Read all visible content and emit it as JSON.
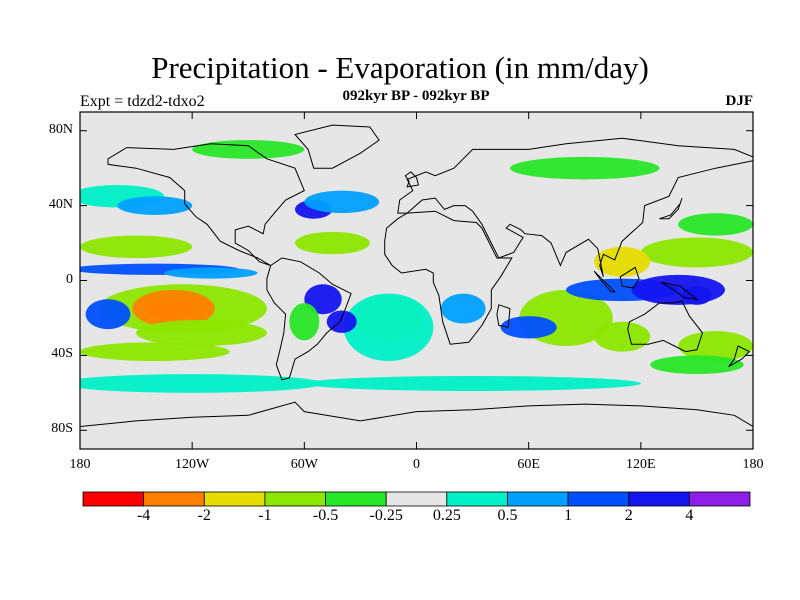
{
  "title": "Precipitation - Evaporation (in mm/day)",
  "subtitle": "092kyr BP - 092kyr BP",
  "experiment": "Expt = tdzd2-tdxo2",
  "season": "DJF",
  "colors": {
    "ocean_neutral": "#e6e6e6",
    "coastline": "#000000"
  },
  "chart_data": {
    "type": "heatmap",
    "title": "Precipitation - Evaporation (in mm/day)",
    "x_axis": {
      "range": [
        -180,
        180
      ],
      "tick_values": [
        -180,
        -120,
        -60,
        0,
        60,
        120,
        180
      ],
      "tick_labels": [
        "180",
        "120W",
        "60W",
        "0",
        "60E",
        "120E",
        "180"
      ]
    },
    "y_axis": {
      "range": [
        -90,
        90
      ],
      "tick_values": [
        80,
        40,
        0,
        -40,
        -80
      ],
      "tick_labels": [
        "80N",
        "40N",
        "0",
        "40S",
        "80S"
      ]
    },
    "colorbar": {
      "labels": [
        "-4",
        "-2",
        "-1",
        "-0.5",
        "-0.25",
        "0.25",
        "0.5",
        "1",
        "2",
        "4"
      ],
      "boundaries": [
        -4,
        -2,
        -1,
        -0.5,
        -0.25,
        0.25,
        0.5,
        1,
        2,
        4
      ],
      "colors": [
        "#ff0000",
        "#ff8000",
        "#e6dc00",
        "#8ce600",
        "#28e628",
        "#e6e6e6",
        "#00f0c8",
        "#00a0ff",
        "#0050ff",
        "#1414f0",
        "#8c1ee6"
      ]
    },
    "regions": [
      {
        "name": "trop-dry-se-pacific",
        "lon": -125,
        "lat": -15,
        "rlon": 45,
        "rlat": 13,
        "v": -0.7
      },
      {
        "name": "pacific-dry-core",
        "lon": -132,
        "lat": -15,
        "rlon": 12,
        "rlat": 6,
        "v": -3.5
      },
      {
        "name": "pacific-dry-ring",
        "lon": -130,
        "lat": -15,
        "rlon": 22,
        "rlat": 10,
        "v": -2.2
      },
      {
        "name": "se-pacific-arc",
        "lon": -115,
        "lat": -28,
        "rlon": 35,
        "rlat": 7,
        "v": -0.7
      },
      {
        "name": "south-pacific-band",
        "lon": -140,
        "lat": -38,
        "rlon": 40,
        "rlat": 5,
        "v": -0.8
      },
      {
        "name": "north-pacific-dry",
        "lon": -150,
        "lat": 18,
        "rlon": 30,
        "rlat": 6,
        "v": -0.8
      },
      {
        "name": "itcz-east-pacific",
        "lon": -140,
        "lat": 6,
        "rlon": 45,
        "rlat": 3,
        "v": 1.5
      },
      {
        "name": "itcz-east-pacific-2",
        "lon": -110,
        "lat": 4,
        "rlon": 25,
        "rlat": 3,
        "v": 0.8
      },
      {
        "name": "sw-pacific-blue",
        "lon": -165,
        "lat": -18,
        "rlon": 12,
        "rlat": 8,
        "v": 1.5
      },
      {
        "name": "north-pacific-storm",
        "lon": -160,
        "lat": 45,
        "rlon": 25,
        "rlat": 6,
        "v": 0.4
      },
      {
        "name": "n-pacific-wet",
        "lon": -140,
        "lat": 40,
        "rlon": 20,
        "rlat": 5,
        "v": 0.8
      },
      {
        "name": "south-ocean-cyan",
        "lon": -120,
        "lat": -55,
        "rlon": 70,
        "rlat": 5,
        "v": 0.4
      },
      {
        "name": "south-ocean-cyan-2",
        "lon": 30,
        "lat": -55,
        "rlon": 90,
        "rlat": 4,
        "v": 0.4
      },
      {
        "name": "north-atlantic-blue",
        "lon": -55,
        "lat": 38,
        "rlon": 10,
        "rlat": 5,
        "v": 2.0
      },
      {
        "name": "north-atlantic-wet",
        "lon": -40,
        "lat": 42,
        "rlon": 20,
        "rlat": 6,
        "v": 0.5
      },
      {
        "name": "atlantic-dry",
        "lon": -45,
        "lat": 20,
        "rlon": 20,
        "rlat": 6,
        "v": -0.6
      },
      {
        "name": "south-atlantic-dry",
        "lon": -15,
        "lat": -20,
        "rlon": 18,
        "rlat": 12,
        "v": -0.6
      },
      {
        "name": "south-atlantic-ring",
        "lon": -15,
        "lat": -25,
        "rlon": 24,
        "rlat": 18,
        "v": 0.4
      },
      {
        "name": "amazon-wet",
        "lon": -50,
        "lat": -10,
        "rlon": 10,
        "rlat": 8,
        "v": 2.0
      },
      {
        "name": "brazil-east",
        "lon": -40,
        "lat": -22,
        "rlon": 8,
        "rlat": 6,
        "v": 2.2
      },
      {
        "name": "sa-dry",
        "lon": -60,
        "lat": -22,
        "rlon": 8,
        "rlat": 10,
        "v": -0.4
      },
      {
        "name": "africa-wet",
        "lon": 25,
        "lat": -15,
        "rlon": 12,
        "rlat": 8,
        "v": 0.6
      },
      {
        "name": "indian-ocean-dry",
        "lon": 80,
        "lat": -20,
        "rlon": 25,
        "rlat": 15,
        "v": -0.6
      },
      {
        "name": "indian-ocean-blue",
        "lon": 60,
        "lat": -25,
        "rlon": 15,
        "rlat": 6,
        "v": 1.0
      },
      {
        "name": "io-blue-belt",
        "lon": 110,
        "lat": -5,
        "rlon": 30,
        "rlat": 6,
        "v": 1.2
      },
      {
        "name": "maritime-blue",
        "lon": 140,
        "lat": -5,
        "rlon": 25,
        "rlat": 8,
        "v": 2.0
      },
      {
        "name": "maritime-deep",
        "lon": 150,
        "lat": -8,
        "rlon": 8,
        "rlat": 5,
        "v": 3.0
      },
      {
        "name": "w-pacific-dry",
        "lon": 150,
        "lat": 15,
        "rlon": 30,
        "rlat": 8,
        "v": -0.8
      },
      {
        "name": "china-sea-dry",
        "lon": 110,
        "lat": 10,
        "rlon": 15,
        "rlat": 8,
        "v": -1.2
      },
      {
        "name": "n-pacific-dry-2",
        "lon": 160,
        "lat": 30,
        "rlon": 20,
        "rlat": 6,
        "v": -0.4
      },
      {
        "name": "sw-pacific-dry",
        "lon": 160,
        "lat": -35,
        "rlon": 20,
        "rlat": 8,
        "v": -0.7
      },
      {
        "name": "australia-west-dry",
        "lon": 110,
        "lat": -30,
        "rlon": 15,
        "rlat": 8,
        "v": -0.7
      },
      {
        "name": "arctic-green",
        "lon": -90,
        "lat": 70,
        "rlon": 30,
        "rlat": 5,
        "v": -0.5
      },
      {
        "name": "siberia-green",
        "lon": 90,
        "lat": 60,
        "rlon": 40,
        "rlat": 6,
        "v": -0.3
      },
      {
        "name": "south-ocean-green",
        "lon": 150,
        "lat": -45,
        "rlon": 25,
        "rlat": 5,
        "v": -0.5
      }
    ]
  }
}
